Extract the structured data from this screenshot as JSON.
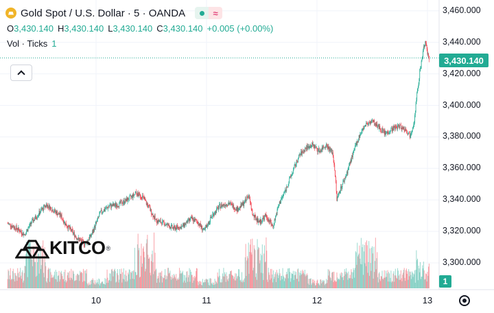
{
  "header": {
    "title": "Gold Spot / U.S. Dollar · 5 · OANDA",
    "status_glyph": "≈",
    "ohlc": {
      "o_label": "O",
      "o": "3,430.140",
      "h_label": "H",
      "h": "3,430.140",
      "l_label": "L",
      "l": "3,430.140",
      "c_label": "C",
      "c": "3,430.140",
      "change": "+0.005 (+0.00%)"
    },
    "volume_label": "Vol · Ticks",
    "volume_value": "1"
  },
  "price_tag": "3,430.140",
  "volume_tag": "1",
  "logo_text": "KITCO",
  "logo_mark": "®",
  "colors": {
    "up": "#22ab94",
    "down": "#f23645",
    "grid": "#f0f3fa",
    "dotted": "#22ab94"
  },
  "chart_data": {
    "type": "candlestick",
    "instrument": "Gold Spot / U.S. Dollar",
    "interval": "5",
    "source": "OANDA",
    "ylim": [
      3290,
      3462
    ],
    "y_ticks": [
      "3,460.000",
      "3,440.000",
      "3,420.000",
      "3,400.000",
      "3,380.000",
      "3,360.000",
      "3,340.000",
      "3,320.000",
      "3,300.000"
    ],
    "y_tick_values": [
      3460,
      3440,
      3420,
      3400,
      3380,
      3360,
      3340,
      3320,
      3300
    ],
    "x_ticks": [
      "10",
      "11",
      "12",
      "13"
    ],
    "x_tick_days": [
      10,
      11,
      12,
      13
    ],
    "x_range_days": [
      9.2,
      13.02
    ],
    "last_price": 3430.14,
    "path_points": [
      [
        9.2,
        3325
      ],
      [
        9.28,
        3322
      ],
      [
        9.35,
        3318
      ],
      [
        9.42,
        3326
      ],
      [
        9.5,
        3333
      ],
      [
        9.55,
        3337
      ],
      [
        9.62,
        3333
      ],
      [
        9.68,
        3330
      ],
      [
        9.72,
        3325
      ],
      [
        9.78,
        3320
      ],
      [
        9.84,
        3315
      ],
      [
        9.9,
        3312
      ],
      [
        9.96,
        3318
      ],
      [
        10.04,
        3332
      ],
      [
        10.12,
        3336
      ],
      [
        10.2,
        3337
      ],
      [
        10.28,
        3340
      ],
      [
        10.36,
        3344
      ],
      [
        10.42,
        3342
      ],
      [
        10.48,
        3335
      ],
      [
        10.54,
        3327
      ],
      [
        10.62,
        3325
      ],
      [
        10.7,
        3322
      ],
      [
        10.78,
        3323
      ],
      [
        10.86,
        3328
      ],
      [
        10.92,
        3326
      ],
      [
        10.98,
        3320
      ],
      [
        11.05,
        3330
      ],
      [
        11.12,
        3336
      ],
      [
        11.2,
        3338
      ],
      [
        11.28,
        3334
      ],
      [
        11.34,
        3338
      ],
      [
        11.38,
        3343
      ],
      [
        11.42,
        3330
      ],
      [
        11.48,
        3326
      ],
      [
        11.54,
        3330
      ],
      [
        11.6,
        3323
      ],
      [
        11.66,
        3338
      ],
      [
        11.72,
        3347
      ],
      [
        11.78,
        3358
      ],
      [
        11.84,
        3368
      ],
      [
        11.9,
        3373
      ],
      [
        11.96,
        3375
      ],
      [
        12.02,
        3371
      ],
      [
        12.08,
        3375
      ],
      [
        12.14,
        3370
      ],
      [
        12.16,
        3360
      ],
      [
        12.18,
        3340
      ],
      [
        12.2,
        3345
      ],
      [
        12.26,
        3355
      ],
      [
        12.32,
        3368
      ],
      [
        12.38,
        3380
      ],
      [
        12.44,
        3388
      ],
      [
        12.5,
        3390
      ],
      [
        12.56,
        3386
      ],
      [
        12.62,
        3382
      ],
      [
        12.68,
        3385
      ],
      [
        12.74,
        3387
      ],
      [
        12.8,
        3385
      ],
      [
        12.84,
        3381
      ],
      [
        12.88,
        3390
      ],
      [
        12.91,
        3410
      ],
      [
        12.94,
        3425
      ],
      [
        12.97,
        3438
      ],
      [
        12.98,
        3441
      ],
      [
        13.0,
        3432
      ],
      [
        13.02,
        3430.14
      ]
    ],
    "volume_scale": "ticks",
    "volume_last": 1
  }
}
